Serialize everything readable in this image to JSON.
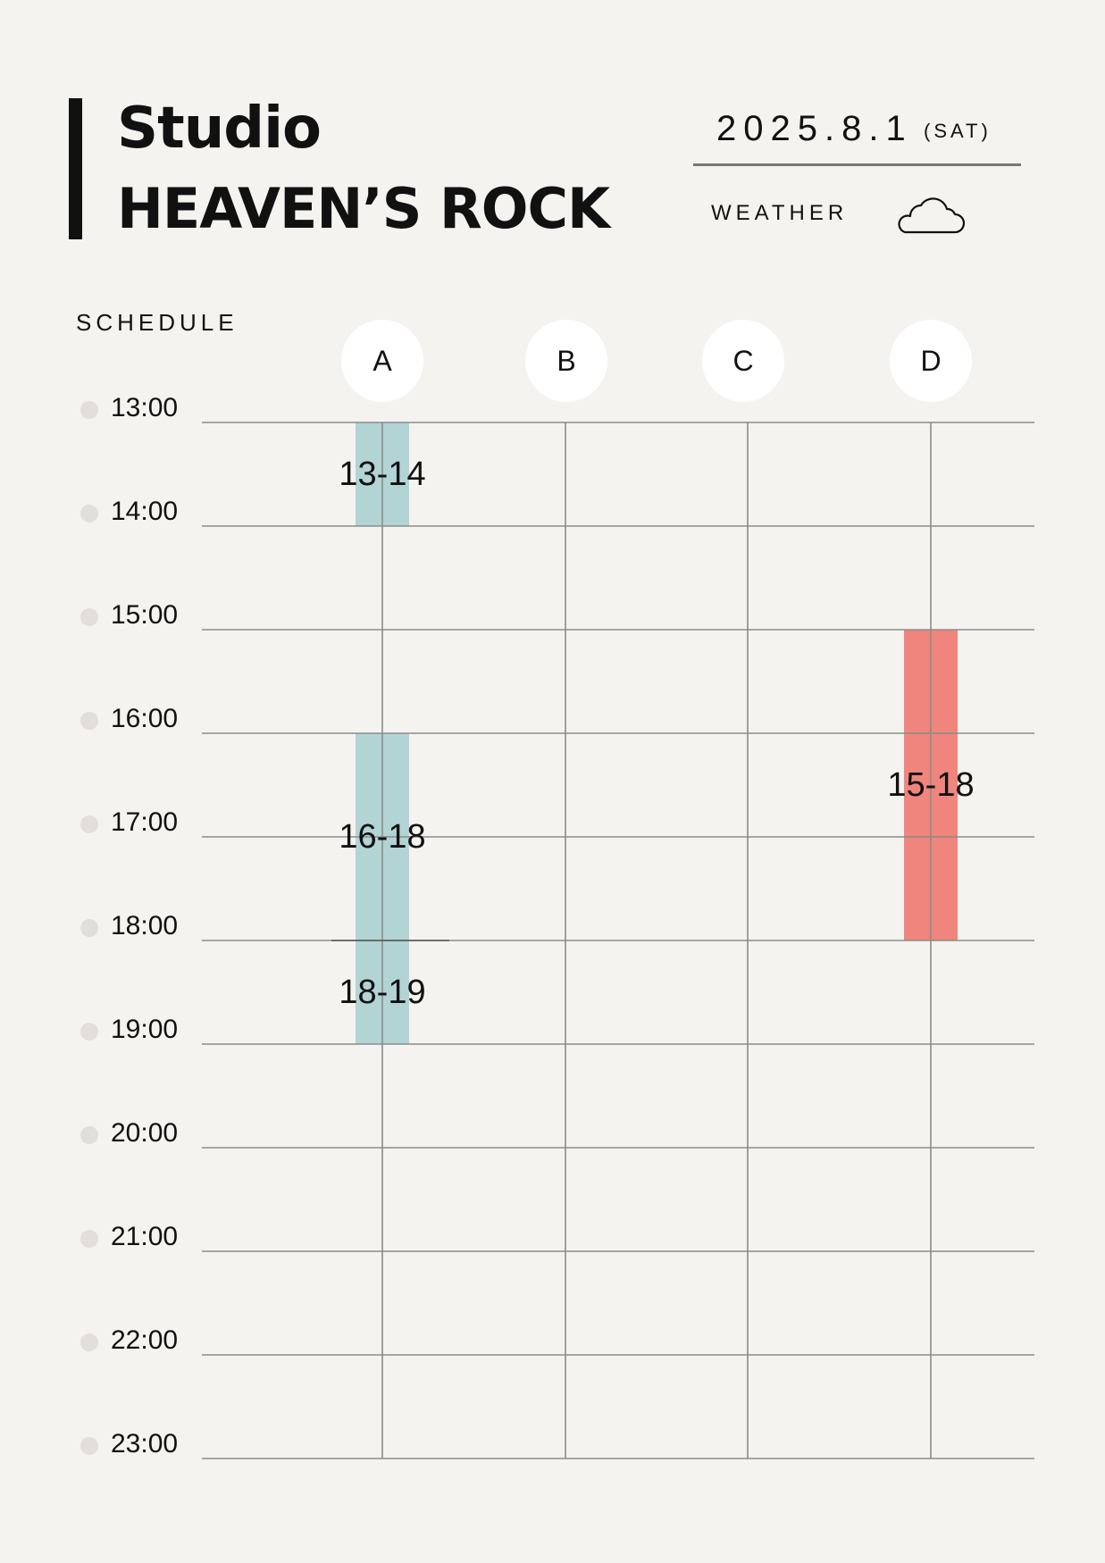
{
  "header": {
    "title_line1": "Studio",
    "title_line2": "HEAVEN’S ROCK",
    "date": "2025.8.1",
    "day_of_week": "(SAT)",
    "weather_label": "WEATHER",
    "weather_icon": "cloud-icon"
  },
  "schedule": {
    "section_label": "SCHEDULE",
    "studios": [
      "A",
      "B",
      "C",
      "D"
    ],
    "times": [
      "13:00",
      "14:00",
      "15:00",
      "16:00",
      "17:00",
      "18:00",
      "19:00",
      "20:00",
      "21:00",
      "22:00",
      "23:00"
    ],
    "start_hour": 13,
    "end_hour": 23,
    "bookings": [
      {
        "studio": "A",
        "start": 13,
        "end": 14,
        "label": "13-14",
        "color": "#b2d4d5"
      },
      {
        "studio": "A",
        "start": 16,
        "end": 18,
        "label": "16-18",
        "color": "#b2d4d5"
      },
      {
        "studio": "A",
        "start": 18,
        "end": 19,
        "label": "18-19",
        "color": "#b2d4d5"
      },
      {
        "studio": "D",
        "start": 15,
        "end": 18,
        "label": "15-18",
        "color": "#ef857c"
      }
    ]
  },
  "colors": {
    "background": "#f4f3ef",
    "grid_line": "#8c8c8c",
    "booking_a": "#b2d4d5",
    "booking_d": "#ef857c",
    "time_dot": "#e2dfdb"
  }
}
